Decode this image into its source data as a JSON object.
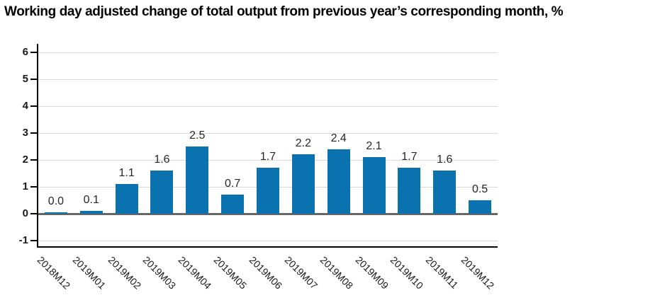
{
  "page": {
    "background": "#ffffff"
  },
  "chart_data": {
    "type": "bar",
    "title": "Working day adjusted change of total output from previous year’s corresponding month, %",
    "categories": [
      "2018M12",
      "2019M01",
      "2019M02",
      "2019M03",
      "2019M04",
      "2019M05",
      "2019M06",
      "2019M07",
      "2019M08",
      "2019M09",
      "2019M10",
      "2019M11",
      "2019M12"
    ],
    "values": [
      0.0,
      0.1,
      1.1,
      1.6,
      2.5,
      0.7,
      1.7,
      2.2,
      2.4,
      2.1,
      1.7,
      1.6,
      0.5
    ],
    "data_labels": [
      "0.0",
      "0.1",
      "1.1",
      "1.6",
      "2.5",
      "0.7",
      "1.7",
      "2.2",
      "2.4",
      "2.1",
      "1.7",
      "1.6",
      "0.5"
    ],
    "xlabel": "",
    "ylabel": "",
    "ylim": [
      -1,
      6
    ],
    "yticks": [
      6,
      5,
      4,
      3,
      2,
      1,
      0,
      -1
    ],
    "grid": true,
    "legend": "none",
    "x_tick_rotation_deg": 45,
    "colors": {
      "bar": "#0b72b0",
      "gridline": "#d9d9d9",
      "zero_line": "#666666",
      "axis": "#000000",
      "title_text": "#000000",
      "tick_label": "#1a1a1a"
    }
  }
}
